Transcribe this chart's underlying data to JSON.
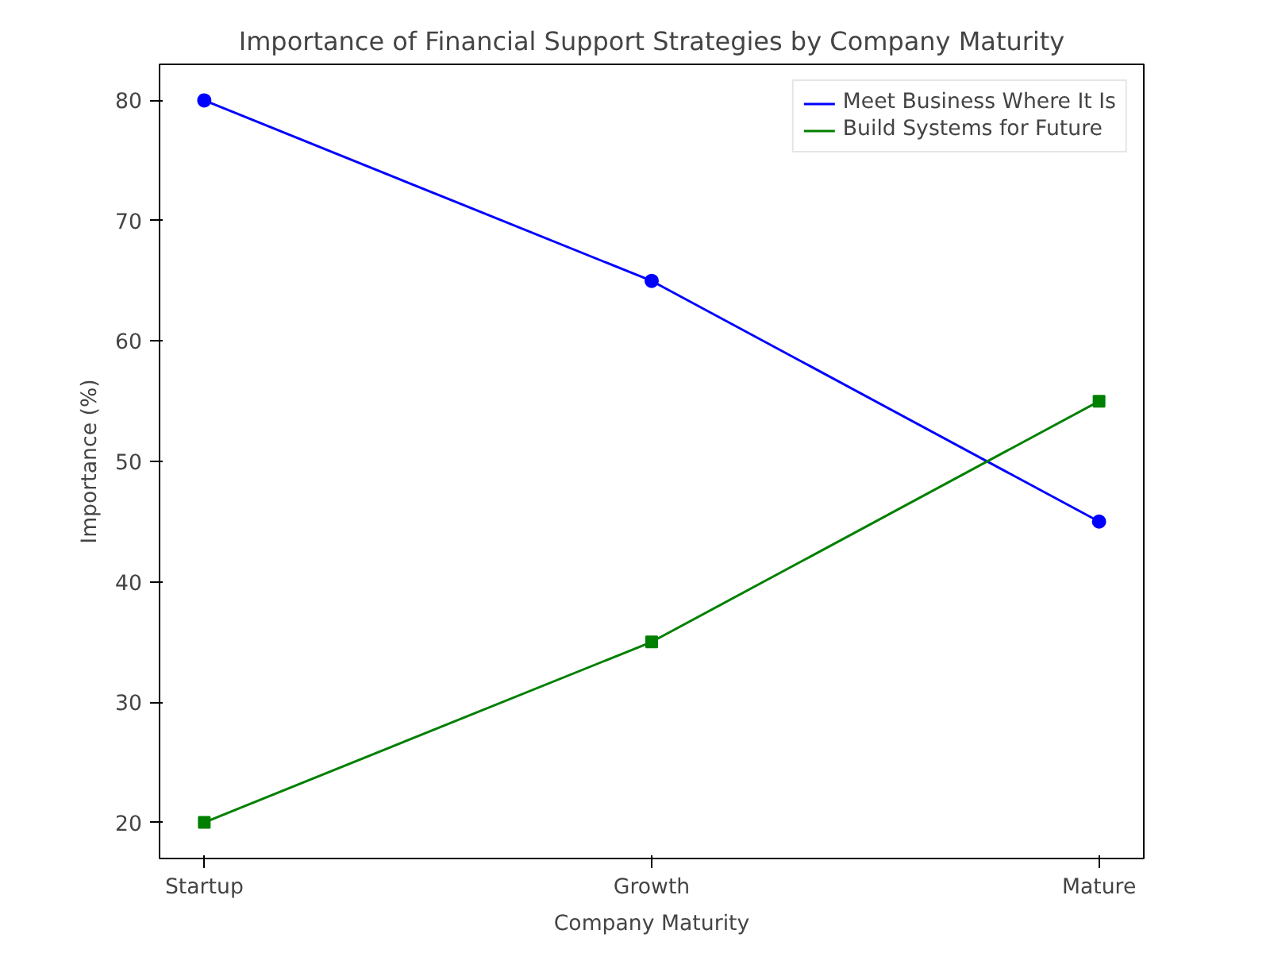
{
  "chart_data": {
    "type": "line",
    "title": "Importance of Financial Support Strategies by Company Maturity",
    "xlabel": "Company Maturity",
    "ylabel": "Importance (%)",
    "categories": [
      "Startup",
      "Growth",
      "Mature"
    ],
    "series": [
      {
        "name": "Meet Business Where It Is",
        "color": "#0000ff",
        "values": [
          80,
          65,
          45
        ],
        "marker": "circle"
      },
      {
        "name": "Build Systems for Future",
        "color": "#008000",
        "values": [
          20,
          35,
          55
        ],
        "marker": "square"
      }
    ],
    "ylim": [
      17,
      83
    ],
    "yticks": [
      20,
      30,
      40,
      50,
      60,
      70,
      80
    ],
    "grid": false,
    "legend": "top right",
    "line_style": "solid"
  }
}
